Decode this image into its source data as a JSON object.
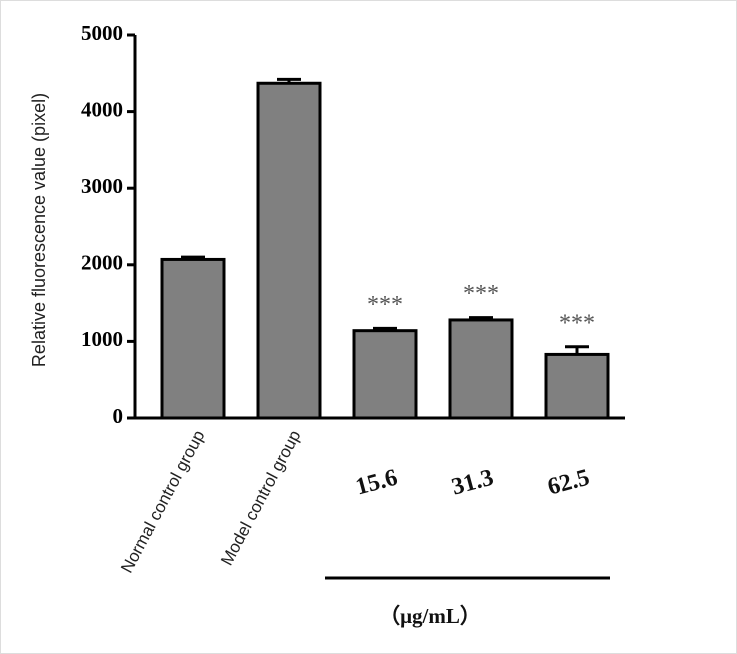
{
  "chart_data": {
    "type": "bar",
    "y_label": "Relative fluorescence value (pixel)",
    "x_label": "（μg/mL）",
    "categories": [
      "Normal control group",
      "Model control group",
      "15.6",
      "31.3",
      "62.5"
    ],
    "values": [
      2070,
      4370,
      1140,
      1280,
      830
    ],
    "errors": [
      30,
      50,
      30,
      30,
      100
    ],
    "significance": [
      null,
      null,
      "***",
      "***",
      "***"
    ],
    "color": "#808080",
    "ylim": [
      0,
      5000
    ],
    "yticks": [
      0,
      1000,
      2000,
      3000,
      4000,
      5000
    ]
  }
}
